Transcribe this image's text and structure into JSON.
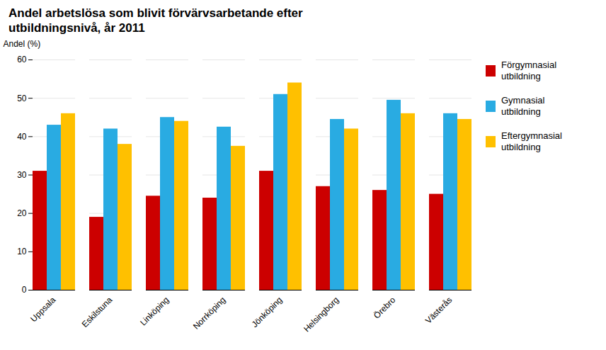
{
  "chart_data": {
    "type": "bar",
    "title": "Andel arbetslösa som blivit förvärvsarbetande efter\nutbildningsnivå, år 2011",
    "ylabel": "Andel (%)",
    "categories": [
      "Uppsala",
      "Eskilstuna",
      "Linköping",
      "Norrköping",
      "Jönköping",
      "Helsingborg",
      "Örebro",
      "Västerås"
    ],
    "series": [
      {
        "name": "Förgymnasial\nutbildning",
        "color": "#CC0000",
        "values": [
          31,
          19,
          24.5,
          24,
          31,
          27,
          26,
          25
        ]
      },
      {
        "name": "Gymnasial\nutbildning",
        "color": "#29ABE2",
        "values": [
          43,
          42,
          45,
          42.5,
          51,
          44.5,
          49.5,
          46
        ]
      },
      {
        "name": "Eftergymnasial\nutbildning",
        "color": "#FFC000",
        "values": [
          46,
          38,
          44,
          37.5,
          54,
          42,
          46,
          44.5
        ]
      }
    ],
    "ylim": [
      0,
      60
    ],
    "yticks": [
      0,
      10,
      20,
      30,
      40,
      50,
      60
    ],
    "grid": true,
    "legend": "right"
  }
}
